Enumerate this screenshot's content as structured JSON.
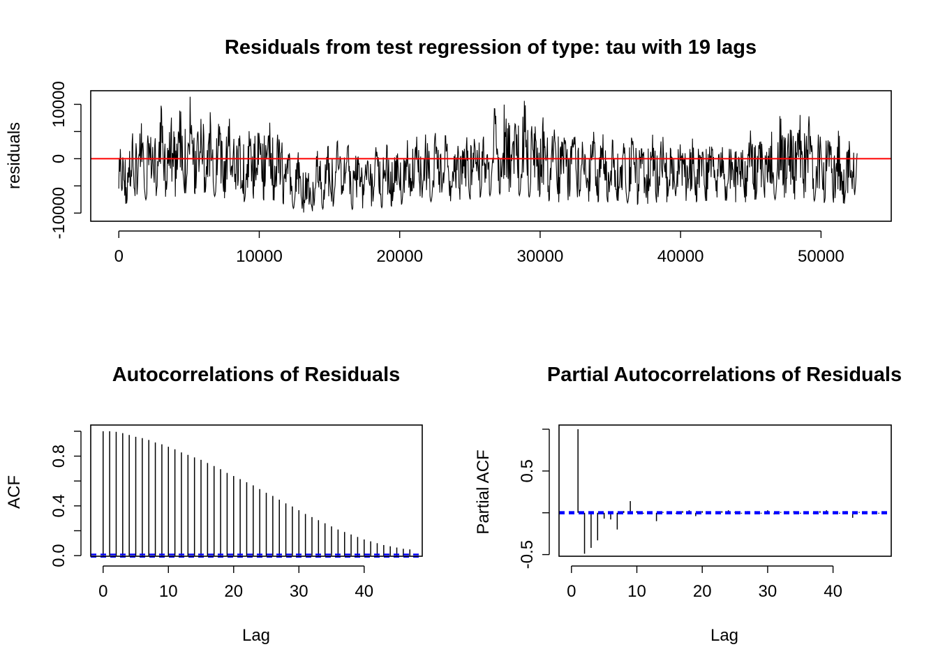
{
  "chart_data": [
    {
      "type": "line",
      "title": "Residuals from test regression of type: tau  with 19 lags",
      "xlabel": "",
      "ylabel": "residuals",
      "xlim": [
        -2000,
        55000
      ],
      "ylim": [
        -11500,
        12500
      ],
      "x_ticks": [
        "0",
        "10000",
        "20000",
        "30000",
        "40000",
        "50000"
      ],
      "x_tick_values": [
        0,
        10000,
        20000,
        30000,
        40000,
        50000
      ],
      "y_ticks": [
        "-10000",
        "-5000",
        "0",
        "5000",
        "10000"
      ],
      "y_tick_values": [
        -10000,
        -5000,
        0,
        5000,
        10000
      ],
      "y_tick_labels_shown": [
        "-10000",
        "0",
        "10000"
      ],
      "n_points": 52600,
      "reference_line": {
        "y": 0,
        "color": "#ff0000"
      },
      "series_color": "#000000",
      "envelope": {
        "x": [
          0,
          500,
          1000,
          2000,
          3000,
          4000,
          5000,
          6000,
          7000,
          8000,
          9000,
          10000,
          11000,
          12000,
          13000,
          13500,
          14000,
          15000,
          16000,
          17000,
          18000,
          19000,
          20000,
          21000,
          22000,
          23000,
          24000,
          25000,
          26000,
          27000,
          28000,
          29000,
          30000,
          31000,
          32000,
          33000,
          34000,
          35000,
          36000,
          37000,
          38000,
          39000,
          40000,
          41000,
          42000,
          43000,
          44000,
          45000,
          46000,
          47000,
          48000,
          49000,
          50000,
          51000,
          52000,
          52600
        ],
        "upper": [
          3500,
          4000,
          8500,
          8000,
          11000,
          9000,
          11500,
          11000,
          8000,
          8500,
          7500,
          8500,
          9000,
          6000,
          2500,
          1000,
          3500,
          4000,
          4000,
          3500,
          3500,
          4000,
          4500,
          5500,
          6000,
          6500,
          7000,
          8000,
          9500,
          11500,
          11000,
          12000,
          10500,
          9000,
          8500,
          7500,
          6500,
          6000,
          5500,
          5500,
          5500,
          5500,
          5500,
          5500,
          5000,
          5500,
          5500,
          6500,
          7500,
          9500,
          9500,
          9000,
          8000,
          6500,
          5000,
          4500
        ],
        "lower": [
          -10000,
          -8500,
          -8000,
          -7500,
          -7000,
          -7000,
          -6500,
          -6500,
          -7000,
          -7500,
          -8000,
          -7500,
          -8000,
          -8500,
          -10000,
          -10500,
          -9500,
          -9000,
          -9000,
          -9500,
          -9000,
          -9000,
          -8500,
          -8000,
          -8000,
          -7500,
          -8000,
          -7500,
          -7000,
          -6500,
          -6500,
          -7000,
          -7500,
          -8000,
          -8000,
          -8500,
          -8000,
          -8000,
          -8000,
          -8500,
          -8500,
          -8000,
          -8000,
          -8000,
          -8000,
          -8000,
          -8000,
          -8000,
          -7500,
          -7500,
          -7500,
          -7500,
          -8000,
          -8500,
          -8500,
          -7000
        ]
      }
    },
    {
      "type": "bar",
      "title": "Autocorrelations of Residuals",
      "xlabel": "Lag",
      "ylabel": "ACF",
      "xlim": [
        -1.9,
        48.9
      ],
      "ylim": [
        -0.005,
        1.05
      ],
      "x_ticks": [
        "0",
        "10",
        "20",
        "30",
        "40"
      ],
      "x_tick_values": [
        0,
        10,
        20,
        30,
        40
      ],
      "y_ticks": [
        "0.0",
        "0.2",
        "0.4",
        "0.6",
        "0.8",
        "1.0"
      ],
      "y_tick_values": [
        0.0,
        0.2,
        0.4,
        0.6,
        0.8,
        1.0
      ],
      "y_tick_labels_shown": [
        "0.0",
        "0.4",
        "0.8"
      ],
      "confidence_band": 0.009,
      "band_color": "#0000ff",
      "lags": [
        0,
        1,
        2,
        3,
        4,
        5,
        6,
        7,
        8,
        9,
        10,
        11,
        12,
        13,
        14,
        15,
        16,
        17,
        18,
        19,
        20,
        21,
        22,
        23,
        24,
        25,
        26,
        27,
        28,
        29,
        30,
        31,
        32,
        33,
        34,
        35,
        36,
        37,
        38,
        39,
        40,
        41,
        42,
        43,
        44,
        45,
        46,
        47
      ],
      "values": [
        1.0,
        1.0,
        0.995,
        0.985,
        0.97,
        0.955,
        0.945,
        0.93,
        0.91,
        0.895,
        0.875,
        0.855,
        0.83,
        0.81,
        0.79,
        0.77,
        0.745,
        0.72,
        0.695,
        0.665,
        0.64,
        0.615,
        0.59,
        0.565,
        0.535,
        0.505,
        0.48,
        0.45,
        0.42,
        0.395,
        0.365,
        0.335,
        0.31,
        0.285,
        0.26,
        0.235,
        0.21,
        0.19,
        0.17,
        0.15,
        0.13,
        0.115,
        0.1,
        0.085,
        0.075,
        0.065,
        0.055,
        0.05
      ]
    },
    {
      "type": "bar",
      "title": "Partial Autocorrelations of Residuals",
      "xlabel": "Lag",
      "ylabel": "Partial ACF",
      "xlim": [
        -1.9,
        48.9
      ],
      "ylim": [
        -0.52,
        1.05
      ],
      "x_ticks": [
        "0",
        "10",
        "20",
        "30",
        "40"
      ],
      "x_tick_values": [
        0,
        10,
        20,
        30,
        40
      ],
      "y_ticks": [
        "-0.5",
        "0.0",
        "0.5",
        "1.0"
      ],
      "y_tick_values": [
        -0.5,
        0.0,
        0.5,
        1.0
      ],
      "y_tick_labels_shown": [
        "-0.5",
        "0.5"
      ],
      "confidence_band": 0.009,
      "band_color": "#0000ff",
      "lags": [
        1,
        2,
        3,
        4,
        5,
        6,
        7,
        8,
        9,
        10,
        11,
        12,
        13,
        14,
        15,
        16,
        17,
        18,
        19,
        20,
        21,
        22,
        23,
        24,
        25,
        26,
        27,
        28,
        29,
        30,
        31,
        32,
        33,
        34,
        35,
        36,
        37,
        38,
        39,
        40,
        41,
        42,
        43,
        44,
        45,
        46,
        47,
        48
      ],
      "values": [
        1.0,
        -0.49,
        -0.42,
        -0.33,
        -0.07,
        -0.08,
        -0.2,
        0.02,
        0.14,
        0.02,
        -0.01,
        0.0,
        -0.1,
        0.01,
        0.0,
        -0.01,
        0.02,
        0.03,
        -0.04,
        0.02,
        -0.01,
        0.0,
        0.02,
        0.03,
        0.01,
        -0.01,
        0.02,
        0.0,
        -0.01,
        0.03,
        -0.02,
        0.01,
        0.0,
        0.02,
        -0.01,
        0.01,
        -0.01,
        0.02,
        0.03,
        0.0,
        -0.01,
        0.02,
        -0.06,
        0.01,
        0.0,
        0.01,
        -0.01,
        0.0
      ]
    }
  ]
}
